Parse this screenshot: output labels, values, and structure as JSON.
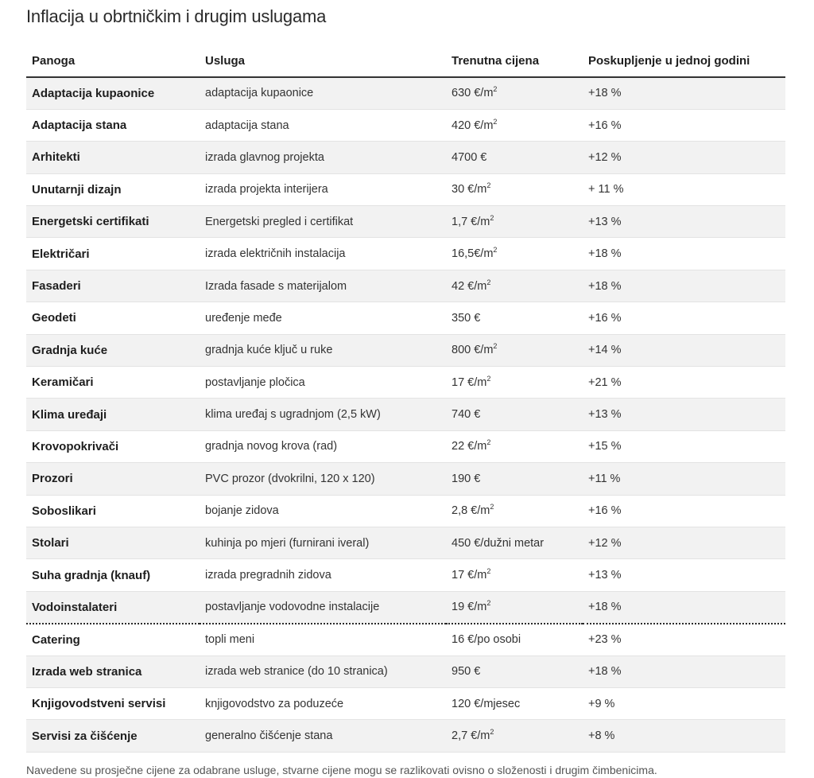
{
  "title": "Inflacija u obrtničkim i drugim uslugama",
  "columns": [
    "Panoga",
    "Usluga",
    "Trenutna cijena",
    "Poskupljenje u jednoj godini"
  ],
  "rows": [
    {
      "sector": "Adaptacija kupaonice",
      "service": "adaptacija kupaonice",
      "price": "630 €/m",
      "sup": "2",
      "change": "+18 %"
    },
    {
      "sector": "Adaptacija stana",
      "service": "adaptacija stana",
      "price": "420 €/m",
      "sup": "2",
      "change": "+16 %"
    },
    {
      "sector": "Arhitekti",
      "service": "izrada glavnog projekta",
      "price": "4700 €",
      "sup": "",
      "change": "+12 %"
    },
    {
      "sector": "Unutarnji dizajn",
      "service": "izrada projekta interijera",
      "price": "30 €/m",
      "sup": "2",
      "change": "+ 11 %"
    },
    {
      "sector": "Energetski certifikati",
      "service": "Energetski pregled i certifikat",
      "price": "1,7 €/m",
      "sup": "2",
      "change": "+13 %"
    },
    {
      "sector": "Električari",
      "service": "izrada električnih instalacija",
      "price": "16,5€/m",
      "sup": "2",
      "change": "+18 %"
    },
    {
      "sector": "Fasaderi",
      "service": "Izrada fasade s materijalom",
      "price": "42 €/m",
      "sup": "2",
      "change": "+18 %"
    },
    {
      "sector": "Geodeti",
      "service": "uređenje međe",
      "price": "350 €",
      "sup": "",
      "change": "+16 %"
    },
    {
      "sector": "Gradnja kuće",
      "service": "gradnja kuće ključ u ruke",
      "price": "800 €/m",
      "sup": "2",
      "change": "+14 %"
    },
    {
      "sector": "Keramičari",
      "service": "postavljanje pločica",
      "price": "17 €/m",
      "sup": "2",
      "change": "+21 %"
    },
    {
      "sector": "Klima uređaji",
      "service": "klima uređaj s ugradnjom (2,5 kW)",
      "price": "740 €",
      "sup": "",
      "change": "+13 %"
    },
    {
      "sector": "Krovopokrivači",
      "service": "gradnja novog krova (rad)",
      "price": "22 €/m",
      "sup": "2",
      "change": "+15 %"
    },
    {
      "sector": "Prozori",
      "service": "PVC prozor (dvokrilni, 120 x 120)",
      "price": "190 €",
      "sup": "",
      "change": "+11 %"
    },
    {
      "sector": "Soboslikari",
      "service": "bojanje zidova",
      "price": "2,8 €/m",
      "sup": "2",
      "change": "+16 %"
    },
    {
      "sector": "Stolari",
      "service": "kuhinja po mjeri (furnirani iveral)",
      "price": "450 €/dužni metar",
      "sup": "",
      "change": "+12 %"
    },
    {
      "sector": "Suha gradnja (knauf)",
      "service": "izrada pregradnih zidova",
      "price": "17 €/m",
      "sup": "2",
      "change": "+13 %"
    },
    {
      "sector": "Vodoinstalateri",
      "service": "postavljanje vodovodne instalacije",
      "price": "19 €/m",
      "sup": "2",
      "change": "+18 %"
    },
    {
      "sector": "Catering",
      "service": "topli meni",
      "price": "16 €/po osobi",
      "sup": "",
      "change": "+23 %"
    },
    {
      "sector": "Izrada web stranica",
      "service": "izrada web stranice (do 10 stranica)",
      "price": "950 €",
      "sup": "",
      "change": "+18 %"
    },
    {
      "sector": "Knjigovodstveni servisi",
      "service": "knjigovodstvo za poduzeće",
      "price": "120 €/mjesec",
      "sup": "",
      "change": "+9 %"
    },
    {
      "sector": "Servisi za čišćenje",
      "service": "generalno čišćenje stana",
      "price": "2,7 €/m",
      "sup": "2",
      "change": "+8 %"
    }
  ],
  "group_divider_after_row": 17,
  "footnote": "Navedene su prosječne cijene za odabrane usluge, stvarne cijene mogu se razlikovati ovisno o složenosti i drugim čimbenicima.",
  "colors": {
    "stripe": "#f2f2f2",
    "text": "#222222",
    "rule": "#333333"
  }
}
